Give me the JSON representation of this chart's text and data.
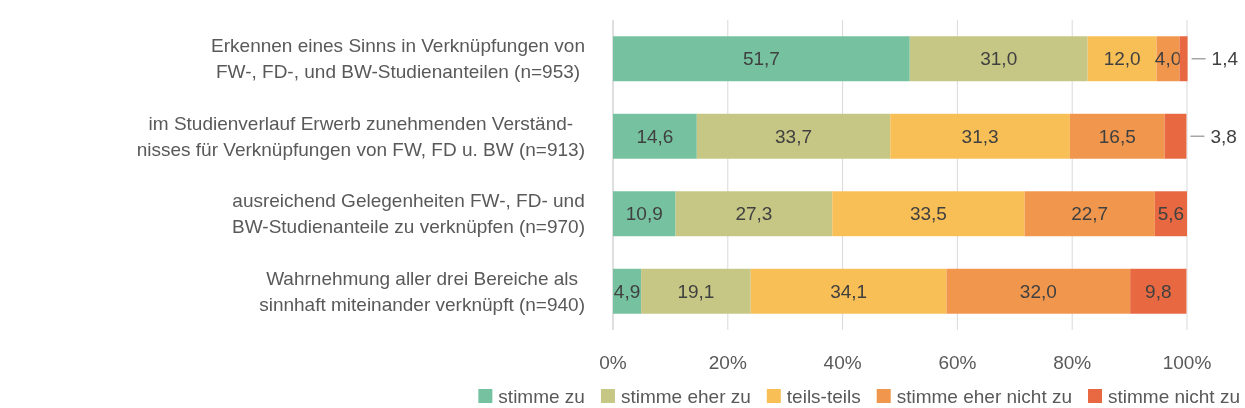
{
  "chart_data": {
    "type": "bar",
    "orientation": "horizontal",
    "stacked": true,
    "grid": "x",
    "legend": "bottom",
    "categories": [
      "Erkennen eines Sinns in Verknüpfungen von\nFW-, FD-, und BW-Studienanteilen (n=953)",
      "im Studienverlauf Erwerb zunehmenden Verständ-\nnisses für Verknüpfungen von FW, FD u. BW (n=913)",
      "ausreichend Gelegenheiten FW-, FD- und\nBW-Studienanteile zu verknüpfen (n=970)",
      "Wahrnehmung aller drei Bereiche als\nsinnhaft miteinander verknüpft (n=940)"
    ],
    "xlim": [
      0,
      100
    ],
    "xticks": [
      {
        "value": 0,
        "label": "0%"
      },
      {
        "value": 20,
        "label": "20%"
      },
      {
        "value": 40,
        "label": "40%"
      },
      {
        "value": 60,
        "label": "60%"
      },
      {
        "value": 80,
        "label": "80%"
      },
      {
        "value": 100,
        "label": "100%"
      }
    ],
    "series": [
      {
        "name": "stimme zu",
        "color": "#75c1a0",
        "values": [
          51.7,
          14.6,
          10.9,
          4.9
        ],
        "value_labels": [
          "51,7",
          "14,6",
          "10,9",
          "4,9"
        ]
      },
      {
        "name": "stimme eher zu",
        "color": "#c6c785",
        "values": [
          31.0,
          33.7,
          27.3,
          19.1
        ],
        "value_labels": [
          "31,0",
          "33,7",
          "27,3",
          "19,1"
        ]
      },
      {
        "name": "teils-teils",
        "color": "#f8bf57",
        "values": [
          12.0,
          31.3,
          33.5,
          34.1
        ],
        "value_labels": [
          "12,0",
          "31,3",
          "33,5",
          "34,1"
        ]
      },
      {
        "name": "stimme eher nicht zu",
        "color": "#f0974d",
        "values": [
          4.0,
          16.5,
          22.7,
          32.0
        ],
        "value_labels": [
          "4,0",
          "16,5",
          "22,7",
          "32,0"
        ]
      },
      {
        "name": "stimme nicht zu",
        "color": "#e86841",
        "values": [
          1.4,
          3.8,
          5.6,
          9.8
        ],
        "value_labels": [
          "1,4",
          "3,8",
          "5,6",
          "9,8"
        ]
      }
    ]
  }
}
